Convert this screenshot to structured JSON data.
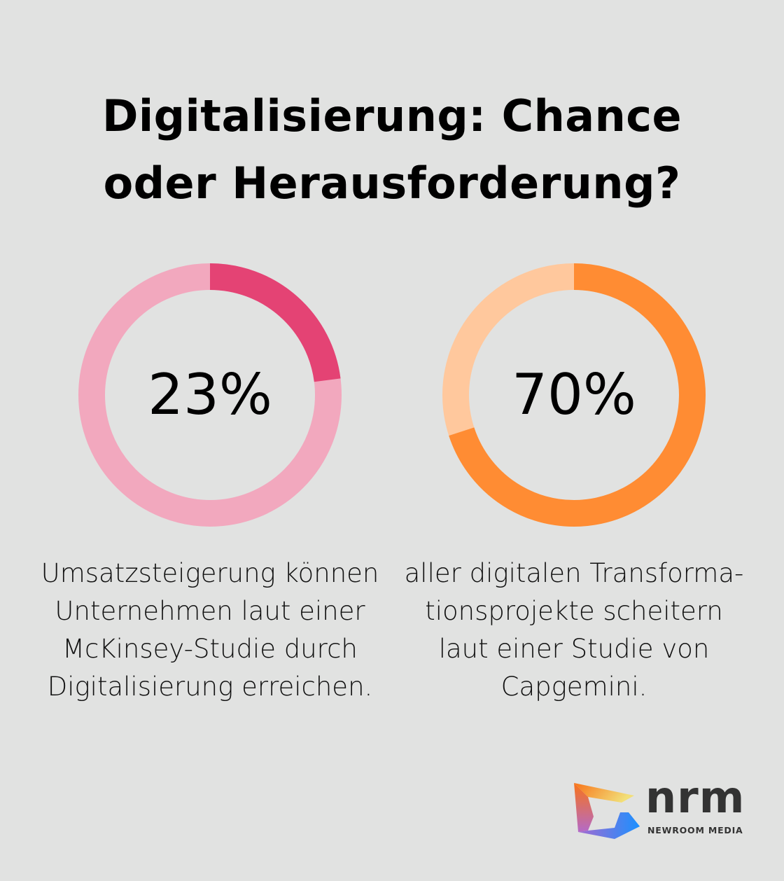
{
  "title_lines": [
    "Digitalisierung: Chance",
    "oder Herausforderung?"
  ],
  "chart_data": [
    {
      "type": "pie",
      "variant": "donut",
      "value_percent": 23,
      "label": "23%",
      "caption": [
        "Umsatzsteigerung können",
        "Unternehmen laut einer",
        "McKinsey-Studie durch",
        "Digitalisierung erreichen."
      ],
      "colors": {
        "value": "#e44374",
        "remainder": "#f2a8be"
      }
    },
    {
      "type": "pie",
      "variant": "donut",
      "value_percent": 70,
      "label": "70%",
      "caption": [
        "aller digitalen Transforma-",
        "tionsprojekte scheitern",
        "laut einer Studie von",
        "Capgemini."
      ],
      "colors": {
        "value": "#ff8c33",
        "remainder": "#ffc89d"
      }
    }
  ],
  "logo": {
    "name": "nrm",
    "subtitle": "NEWROOM MEDIA"
  }
}
